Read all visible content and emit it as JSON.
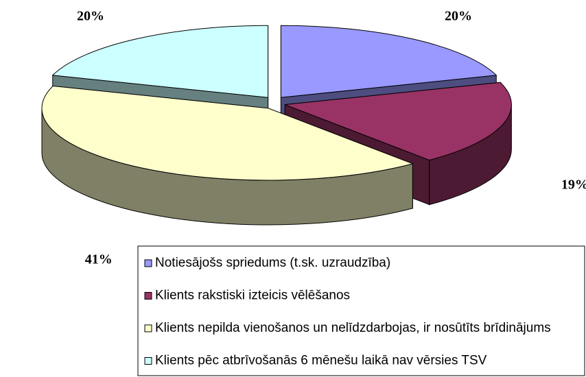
{
  "chart_data": {
    "type": "pie",
    "categories": [
      "Notiesājošs spriedums (t.sk. uzraudzība)",
      "Klients rakstiski izteicis vēlēšanos",
      "Klients nepilda vienošanos un nelīdzdarbojas, ir nosūtīts brīdinājums",
      "Klients pēc atbrīvošanās 6 mēnešu laikā nav vērsies TSV"
    ],
    "values": [
      20,
      19,
      41,
      20
    ],
    "value_labels": [
      "20%",
      "19%",
      "41%",
      "20%"
    ],
    "colors": [
      "#9999ff",
      "#993366",
      "#ffffcc",
      "#ccffff"
    ]
  }
}
